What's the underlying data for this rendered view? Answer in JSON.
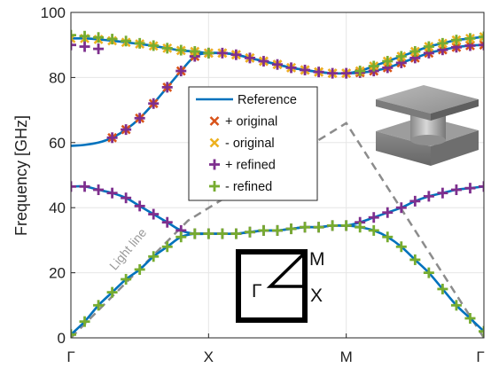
{
  "chart_data": {
    "type": "line",
    "ylabel": "Frequency [GHz]",
    "xlabel": "",
    "ylim": [
      0,
      100
    ],
    "yticks": [
      0,
      20,
      40,
      60,
      80,
      100
    ],
    "xlim": [
      0,
      3
    ],
    "xticks": [
      {
        "pos": 0,
        "label": "Γ"
      },
      {
        "pos": 1,
        "label": "X"
      },
      {
        "pos": 2,
        "label": "M"
      },
      {
        "pos": 3,
        "label": "Γ"
      }
    ],
    "grid": true,
    "legend": {
      "placement": "center",
      "entries": [
        {
          "label": "Reference",
          "style": "line",
          "color": "#0072BD"
        },
        {
          "label": "+ original",
          "style": "x",
          "color": "#D95319"
        },
        {
          "label": "- original",
          "style": "x",
          "color": "#EDB120"
        },
        {
          "label": "+ refined",
          "style": "+",
          "color": "#7E2F8E"
        },
        {
          "label": "- refined",
          "style": "+",
          "color": "#77AC30"
        }
      ]
    },
    "light_line": {
      "label": "Light line",
      "color": "#8c8c8c",
      "x": [
        0,
        0.85,
        2.0,
        3.0
      ],
      "y": [
        0,
        36,
        66,
        0
      ]
    },
    "series": [
      {
        "name": "Reference band 1",
        "color": "#0072BD",
        "x": [
          0,
          0.1,
          0.2,
          0.3,
          0.4,
          0.5,
          0.6,
          0.7,
          0.8,
          0.9,
          1.0,
          1.1,
          1.2,
          1.3,
          1.4,
          1.5,
          1.6,
          1.7,
          1.8,
          1.9,
          2.0,
          2.1,
          2.2,
          2.3,
          2.4,
          2.5,
          2.6,
          2.7,
          2.8,
          2.9,
          3.0
        ],
        "y": [
          1,
          5,
          10,
          14,
          18,
          21,
          25,
          28,
          31,
          32,
          32,
          32,
          32,
          32.5,
          33,
          33,
          33.5,
          34,
          34,
          34.5,
          34.5,
          34,
          33,
          31,
          28,
          24,
          20,
          15,
          10,
          6,
          2
        ]
      },
      {
        "name": "Reference band 2",
        "color": "#0072BD",
        "x": [
          0,
          0.1,
          0.2,
          0.3,
          0.4,
          0.5,
          0.6,
          0.7,
          0.8,
          0.9,
          1.0,
          1.1,
          1.2,
          1.3,
          1.4,
          1.5,
          1.6,
          1.7,
          1.8,
          1.9,
          2.0,
          2.1,
          2.2,
          2.3,
          2.4,
          2.5,
          2.6,
          2.7,
          2.8,
          2.9,
          3.0
        ],
        "y": [
          46.5,
          46.5,
          45.5,
          44.5,
          43,
          40.5,
          38,
          35.5,
          33,
          32,
          32,
          32,
          32,
          32.5,
          33,
          33,
          33.5,
          34,
          34,
          34.5,
          34.5,
          35.5,
          37,
          38.5,
          40,
          42,
          43.5,
          44.5,
          45.5,
          46,
          46.5
        ]
      },
      {
        "name": "Reference band 3",
        "color": "#0072BD",
        "x": [
          0,
          0.1,
          0.2,
          0.3,
          0.4,
          0.5,
          0.6,
          0.7,
          0.8,
          0.9,
          1.0,
          1.1,
          1.2,
          1.3,
          1.4,
          1.5,
          1.6,
          1.7,
          1.8,
          1.9,
          2.0,
          2.1,
          2.2,
          2.3,
          2.4,
          2.5,
          2.6,
          2.7,
          2.8,
          2.9,
          3.0
        ],
        "y": [
          59,
          59.3,
          60,
          61.5,
          64,
          67.5,
          72,
          77,
          82,
          86.5,
          87.5,
          87.5,
          87,
          86,
          85,
          84,
          83,
          82.3,
          81.7,
          81.3,
          81.3,
          81.5,
          82,
          83,
          84.5,
          86,
          87.5,
          88.5,
          89.3,
          89.8,
          90
        ]
      },
      {
        "name": "Reference band 4",
        "color": "#0072BD",
        "x": [
          0,
          0.1,
          0.2,
          0.3,
          0.4,
          0.5,
          0.6,
          0.7,
          0.8,
          0.9,
          1.0,
          1.1,
          1.2,
          1.3,
          1.4,
          1.5,
          1.6,
          1.7,
          1.8,
          1.9,
          2.0,
          2.1,
          2.2,
          2.3,
          2.4,
          2.5,
          2.6,
          2.7,
          2.8,
          2.9,
          3.0
        ],
        "y": [
          92,
          92,
          91.7,
          91.3,
          90.8,
          90.3,
          89.7,
          89,
          88.3,
          88,
          87.5,
          87.5,
          87,
          86,
          85,
          84,
          83,
          82.3,
          81.7,
          81.3,
          81.3,
          82,
          83.5,
          85,
          86.5,
          88,
          89.5,
          90.5,
          91.5,
          92,
          92.5
        ]
      }
    ],
    "markers": {
      "original_plus": {
        "color": "#D95319",
        "symbol": "x",
        "x": [
          0.3,
          0.4,
          0.5,
          0.6,
          0.7,
          0.8,
          0.9,
          1.0,
          1.1,
          1.2,
          1.3,
          1.4,
          1.5,
          1.6,
          1.7,
          1.8,
          1.9,
          2.0,
          2.1,
          2.2,
          2.3,
          2.4,
          2.5,
          2.6,
          2.7,
          2.8,
          2.9,
          3.0
        ],
        "y": [
          61.5,
          64,
          67.5,
          72,
          77,
          82,
          86.5,
          87.5,
          87.5,
          87,
          86,
          85,
          84,
          83,
          82.3,
          81.7,
          81.3,
          81.3,
          81.5,
          82,
          83,
          84.5,
          86,
          87.5,
          88.5,
          89.3,
          89.8,
          90
        ]
      },
      "original_minus": {
        "color": "#EDB120",
        "symbol": "x",
        "x": [
          0,
          0.1,
          0.2,
          0.3,
          0.4,
          0.5,
          0.6,
          0.7,
          0.8,
          0.9,
          1.0,
          1.1,
          1.2,
          1.3,
          1.4,
          1.5,
          1.6,
          1.7,
          1.8,
          1.9,
          2.0,
          2.1,
          2.2,
          2.3,
          2.4,
          2.5,
          2.6,
          2.7,
          2.8,
          2.9,
          3.0
        ],
        "y": [
          92,
          92,
          91.7,
          91.3,
          90.8,
          90.3,
          89.7,
          89,
          88.3,
          88,
          87.5,
          87.5,
          87,
          86,
          85,
          84,
          83,
          82.3,
          81.7,
          81.3,
          81.3,
          82,
          83.5,
          85,
          86.5,
          88,
          89.5,
          90.5,
          91.5,
          92,
          92.5
        ]
      },
      "refined_plus": {
        "color": "#7E2F8E",
        "symbol": "+",
        "x": [
          0,
          0.1,
          0.2,
          0.3,
          0.4,
          0.5,
          0.6,
          0.7,
          0.8,
          0.9,
          1.0,
          1.1,
          1.2,
          1.3,
          1.4,
          1.5,
          1.6,
          1.7,
          1.8,
          1.9,
          2.0,
          2.1,
          2.2,
          2.3,
          2.4,
          2.5,
          2.6,
          2.7,
          2.8,
          2.9,
          3.0,
          0.3,
          0.4,
          0.5,
          0.6,
          0.7,
          0.8,
          0.9,
          1.0,
          1.1,
          1.2,
          1.3,
          1.4,
          1.5,
          1.6,
          1.7,
          1.8,
          1.9,
          2.0,
          2.1,
          2.2,
          2.3,
          2.4,
          2.5,
          2.6,
          2.7,
          2.8,
          2.9,
          3.0,
          0,
          0.1,
          0.2
        ],
        "y": [
          46.5,
          46.5,
          45.5,
          44.5,
          43,
          40.5,
          38,
          35.5,
          33,
          32,
          32,
          32,
          32,
          32.5,
          33,
          33,
          33.5,
          34,
          34,
          34.5,
          34.5,
          35.5,
          37,
          38.5,
          40,
          42,
          43.5,
          44.5,
          45.5,
          46,
          46.5,
          61.5,
          64,
          67.5,
          72,
          77,
          82,
          86.5,
          87.5,
          87.5,
          87,
          86,
          85,
          84,
          83,
          82.3,
          81.7,
          81.3,
          81.3,
          81.5,
          82,
          83,
          84.5,
          86,
          87.5,
          88.5,
          89.3,
          89.8,
          90,
          90,
          89.5,
          88.8
        ]
      },
      "refined_minus": {
        "color": "#77AC30",
        "symbol": "+",
        "x": [
          0,
          0.1,
          0.2,
          0.3,
          0.4,
          0.5,
          0.6,
          0.7,
          0.8,
          0.9,
          1.0,
          1.1,
          1.2,
          1.3,
          1.4,
          1.5,
          1.6,
          1.7,
          1.8,
          1.9,
          2.0,
          2.1,
          2.2,
          2.3,
          2.4,
          2.5,
          2.6,
          2.7,
          2.8,
          2.9,
          3.0,
          0,
          0.1,
          0.2,
          0.3,
          0.4,
          0.5,
          0.6,
          0.7,
          0.8,
          0.9,
          1.0,
          2.1,
          2.2,
          2.3,
          2.4,
          2.5,
          2.6,
          2.7,
          2.8,
          2.9,
          3.0
        ],
        "y": [
          1,
          5,
          10,
          14,
          18,
          21,
          25,
          28,
          31,
          32,
          32,
          32,
          32,
          32.5,
          33,
          33,
          33.5,
          34,
          34,
          34.5,
          34.5,
          34,
          33,
          31,
          28,
          24,
          20,
          15,
          10,
          6,
          2,
          93,
          92.7,
          92.3,
          91.8,
          91.2,
          90.5,
          89.8,
          89,
          88.4,
          88,
          87.5,
          82,
          83.5,
          85,
          86.5,
          88,
          89.5,
          90.5,
          91.5,
          92,
          92.5
        ]
      }
    },
    "annotations": {
      "brillouin_zone": {
        "labels": {
          "gamma": "Γ",
          "x": "X",
          "m": "M"
        }
      }
    }
  }
}
